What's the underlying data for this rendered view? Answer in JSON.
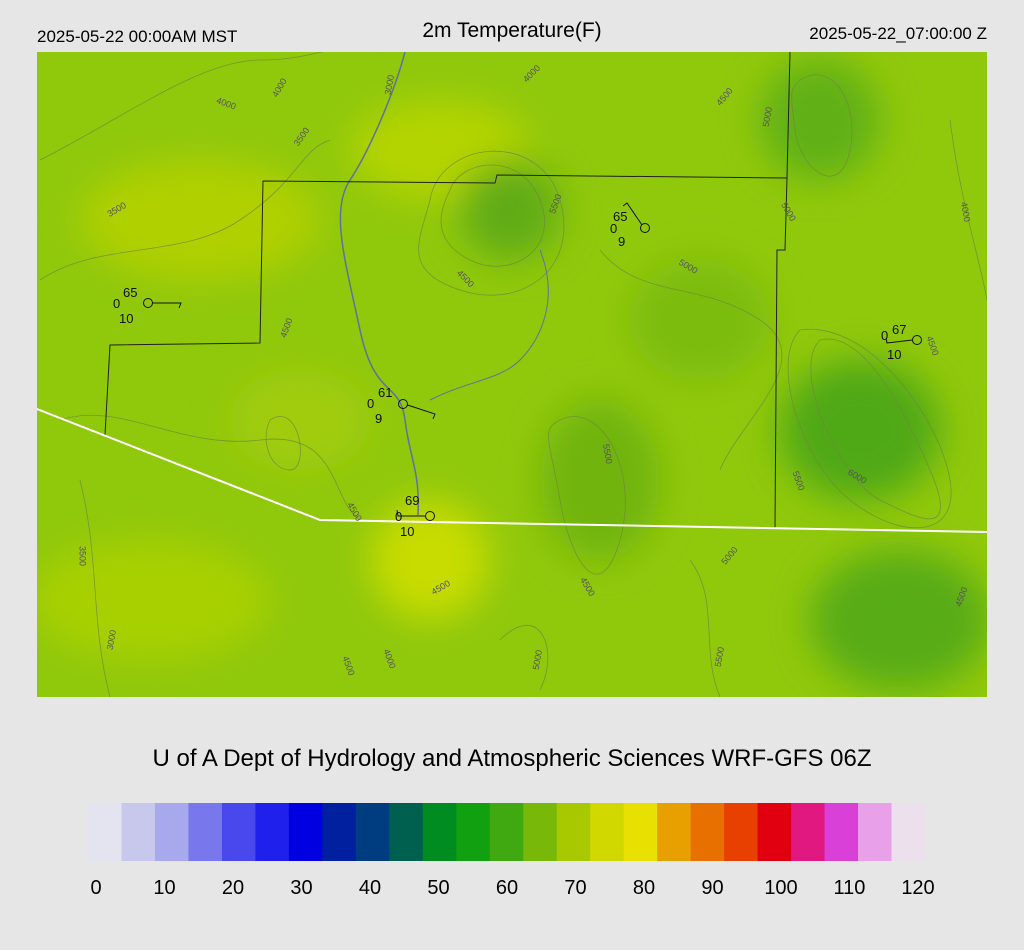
{
  "header": {
    "left": "2025-05-22 00:00AM MST",
    "title": "2m Temperature(F)",
    "right": "2025-05-22_07:00:00 Z"
  },
  "map": {
    "contour_labels": [
      "4000",
      "4000",
      "3000",
      "3500",
      "3500",
      "4000",
      "4500",
      "5000",
      "5500",
      "5000",
      "4000",
      "5000",
      "4500",
      "4500",
      "4500",
      "5500",
      "5500",
      "6000",
      "4500",
      "3500",
      "4500",
      "5000",
      "4500",
      "3000",
      "4500",
      "4000",
      "4500",
      "5000",
      "5500"
    ],
    "stations": [
      {
        "temp": "65",
        "left": "0",
        "bottom": "10"
      },
      {
        "temp": "65",
        "left": "0",
        "bottom": "9"
      },
      {
        "temp": "67",
        "left": "0",
        "bottom": "10"
      },
      {
        "temp": "61",
        "left": "0",
        "bottom": "9"
      },
      {
        "temp": "69",
        "left": "0",
        "bottom": "10"
      }
    ]
  },
  "credit": "U of A Dept of Hydrology and Atmospheric Sciences WRF-GFS 06Z",
  "colorbar": {
    "ticks": [
      0,
      10,
      20,
      30,
      40,
      50,
      60,
      70,
      80,
      90,
      100,
      110,
      120
    ],
    "colors": [
      "#e4e4f0",
      "#c8c8ec",
      "#a8a8ec",
      "#7878ec",
      "#4848ec",
      "#2020ec",
      "#0000e0",
      "#0020a0",
      "#003c80",
      "#006050",
      "#008c20",
      "#10a010",
      "#40a810",
      "#78b808",
      "#a8c800",
      "#d0d800",
      "#e8e000",
      "#e8a000",
      "#e87000",
      "#e84000",
      "#e00010",
      "#e01880",
      "#d840d8",
      "#e8a0e8",
      "#ece0ec"
    ]
  }
}
